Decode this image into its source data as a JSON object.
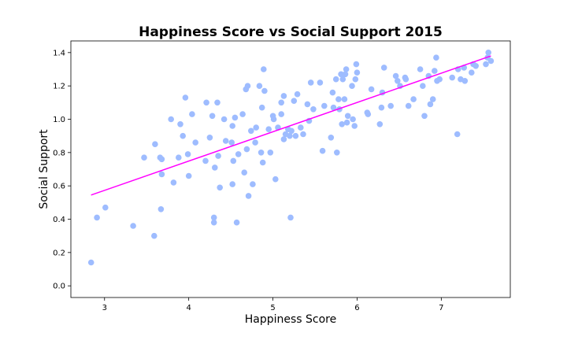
{
  "chart_data": {
    "type": "scatter",
    "title": "Happiness Score vs Social Support 2015",
    "xlabel": "Happiness Score",
    "ylabel": "Social Support",
    "xlim": [
      2.6,
      7.82
    ],
    "ylim": [
      -0.07,
      1.47
    ],
    "xticks": [
      3,
      4,
      5,
      6,
      7
    ],
    "yticks": [
      0.0,
      0.2,
      0.4,
      0.6,
      0.8,
      1.0,
      1.2,
      1.4
    ],
    "grid": false,
    "legend": "none",
    "colors": {
      "points": "#9ebcff",
      "trend": "#ff00ff"
    },
    "trendline": {
      "x": [
        2.84,
        7.59
      ],
      "y": [
        0.545,
        1.38
      ]
    },
    "points": {
      "x": [
        2.84,
        2.91,
        3.01,
        3.34,
        3.47,
        3.59,
        3.6,
        3.66,
        3.67,
        3.68,
        3.68,
        3.79,
        3.82,
        3.88,
        3.9,
        3.93,
        3.96,
        3.99,
        4.0,
        4.04,
        4.08,
        4.2,
        4.21,
        4.25,
        4.28,
        4.3,
        4.3,
        4.31,
        4.34,
        4.35,
        4.37,
        4.42,
        4.44,
        4.51,
        4.52,
        4.52,
        4.53,
        4.55,
        4.57,
        4.59,
        4.64,
        4.66,
        4.68,
        4.69,
        4.7,
        4.71,
        4.74,
        4.76,
        4.79,
        4.8,
        4.84,
        4.86,
        4.87,
        4.88,
        4.89,
        4.9,
        4.95,
        4.97,
        5.0,
        5.01,
        5.03,
        5.06,
        5.1,
        5.1,
        5.13,
        5.13,
        5.15,
        5.18,
        5.2,
        5.21,
        5.22,
        5.25,
        5.27,
        5.29,
        5.33,
        5.36,
        5.41,
        5.43,
        5.45,
        5.48,
        5.56,
        5.59,
        5.61,
        5.69,
        5.71,
        5.72,
        5.75,
        5.76,
        5.78,
        5.79,
        5.81,
        5.82,
        5.83,
        5.85,
        5.86,
        5.87,
        5.88,
        5.89,
        5.94,
        5.95,
        5.97,
        5.98,
        5.99,
        6.0,
        6.12,
        6.13,
        6.17,
        6.27,
        6.29,
        6.3,
        6.32,
        6.4,
        6.46,
        6.48,
        6.51,
        6.57,
        6.58,
        6.61,
        6.67,
        6.75,
        6.78,
        6.8,
        6.85,
        6.87,
        6.9,
        6.92,
        6.94,
        6.95,
        6.98,
        7.13,
        7.19,
        7.2,
        7.23,
        7.27,
        7.28,
        7.36,
        7.38,
        7.41,
        7.53,
        7.55,
        7.56,
        7.59
      ],
      "y": [
        0.14,
        0.41,
        0.47,
        0.36,
        0.77,
        0.3,
        0.85,
        0.77,
        0.46,
        0.76,
        0.67,
        1.0,
        0.62,
        0.77,
        0.97,
        0.9,
        1.13,
        0.79,
        0.66,
        1.03,
        0.86,
        0.75,
        1.1,
        0.89,
        1.02,
        0.38,
        0.41,
        0.71,
        1.1,
        0.78,
        0.59,
        1.0,
        0.87,
        0.86,
        0.61,
        0.96,
        0.75,
        1.01,
        0.38,
        0.79,
        1.03,
        0.68,
        1.18,
        0.82,
        1.2,
        0.54,
        0.93,
        0.61,
        0.86,
        0.95,
        1.2,
        0.8,
        1.07,
        0.74,
        1.3,
        1.17,
        0.94,
        0.8,
        1.02,
        1.0,
        0.64,
        0.95,
        1.1,
        1.03,
        1.14,
        0.88,
        0.91,
        0.94,
        0.9,
        0.41,
        0.93,
        1.11,
        0.9,
        1.15,
        0.95,
        0.91,
        1.09,
        0.99,
        1.22,
        1.06,
        1.22,
        0.81,
        1.08,
        0.89,
        1.16,
        1.07,
        1.24,
        0.8,
        1.12,
        1.06,
        1.27,
        0.97,
        1.24,
        1.12,
        1.27,
        1.3,
        0.98,
        1.02,
        1.2,
        1.0,
        0.96,
        1.24,
        1.33,
        1.28,
        1.04,
        1.03,
        1.18,
        0.97,
        1.07,
        1.16,
        1.31,
        1.08,
        1.26,
        1.23,
        1.2,
        1.25,
        1.24,
        1.08,
        1.12,
        1.3,
        1.2,
        1.02,
        1.26,
        1.09,
        1.12,
        1.29,
        1.37,
        1.23,
        1.24,
        1.25,
        0.91,
        1.3,
        1.24,
        1.31,
        1.23,
        1.28,
        1.33,
        1.32,
        1.33,
        1.37,
        1.4,
        1.35
      ]
    }
  }
}
